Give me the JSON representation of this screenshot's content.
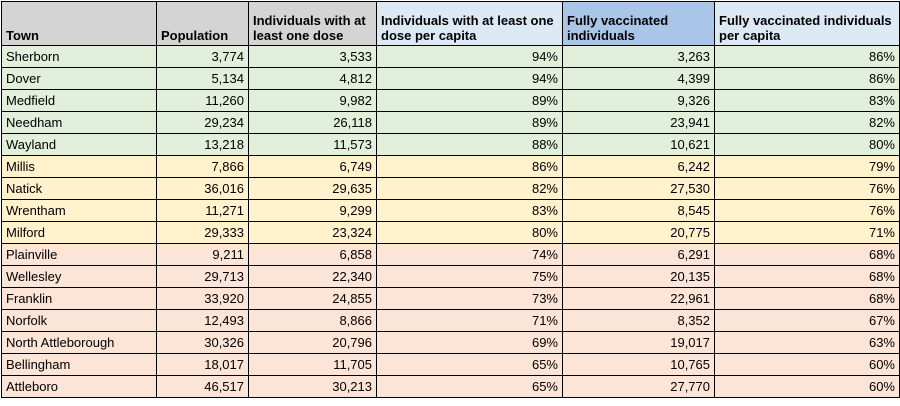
{
  "colors": {
    "header_gray": "#d4d4d4",
    "header_light_blue": "#dde8f5",
    "header_blue": "#a9c6e8",
    "row_green": "#e2efda",
    "row_yellow": "#fff2cc",
    "row_red": "#fce4d6"
  },
  "table": {
    "headers": {
      "town": "Town",
      "population": "Population",
      "one_dose": "Individuals with at least one dose",
      "one_dose_per_capita": "Individuals with at least one dose per capita",
      "fully_vaccinated": "Fully vaccinated individuals",
      "fully_vaccinated_per_capita": "Fully vaccinated individuals per capita"
    },
    "rows": [
      {
        "town": "Sherborn",
        "population": "3,774",
        "one_dose": "3,533",
        "one_dose_pc": "94%",
        "full": "3,263",
        "full_pc": "86%",
        "band": "green"
      },
      {
        "town": "Dover",
        "population": "5,134",
        "one_dose": "4,812",
        "one_dose_pc": "94%",
        "full": "4,399",
        "full_pc": "86%",
        "band": "green"
      },
      {
        "town": "Medfield",
        "population": "11,260",
        "one_dose": "9,982",
        "one_dose_pc": "89%",
        "full": "9,326",
        "full_pc": "83%",
        "band": "green"
      },
      {
        "town": "Needham",
        "population": "29,234",
        "one_dose": "26,118",
        "one_dose_pc": "89%",
        "full": "23,941",
        "full_pc": "82%",
        "band": "green"
      },
      {
        "town": "Wayland",
        "population": "13,218",
        "one_dose": "11,573",
        "one_dose_pc": "88%",
        "full": "10,621",
        "full_pc": "80%",
        "band": "green"
      },
      {
        "town": "Millis",
        "population": "7,866",
        "one_dose": "6,749",
        "one_dose_pc": "86%",
        "full": "6,242",
        "full_pc": "79%",
        "band": "yellow"
      },
      {
        "town": "Natick",
        "population": "36,016",
        "one_dose": "29,635",
        "one_dose_pc": "82%",
        "full": "27,530",
        "full_pc": "76%",
        "band": "yellow"
      },
      {
        "town": "Wrentham",
        "population": "11,271",
        "one_dose": "9,299",
        "one_dose_pc": "83%",
        "full": "8,545",
        "full_pc": "76%",
        "band": "yellow"
      },
      {
        "town": "Milford",
        "population": "29,333",
        "one_dose": "23,324",
        "one_dose_pc": "80%",
        "full": "20,775",
        "full_pc": "71%",
        "band": "yellow"
      },
      {
        "town": "Plainville",
        "population": "9,211",
        "one_dose": "6,858",
        "one_dose_pc": "74%",
        "full": "6,291",
        "full_pc": "68%",
        "band": "red"
      },
      {
        "town": "Wellesley",
        "population": "29,713",
        "one_dose": "22,340",
        "one_dose_pc": "75%",
        "full": "20,135",
        "full_pc": "68%",
        "band": "red"
      },
      {
        "town": "Franklin",
        "population": "33,920",
        "one_dose": "24,855",
        "one_dose_pc": "73%",
        "full": "22,961",
        "full_pc": "68%",
        "band": "red"
      },
      {
        "town": "Norfolk",
        "population": "12,493",
        "one_dose": "8,866",
        "one_dose_pc": "71%",
        "full": "8,352",
        "full_pc": "67%",
        "band": "red"
      },
      {
        "town": "North Attleborough",
        "population": "30,326",
        "one_dose": "20,796",
        "one_dose_pc": "69%",
        "full": "19,017",
        "full_pc": "63%",
        "band": "red"
      },
      {
        "town": "Bellingham",
        "population": "18,017",
        "one_dose": "11,705",
        "one_dose_pc": "65%",
        "full": "10,765",
        "full_pc": "60%",
        "band": "red"
      },
      {
        "town": "Attleboro",
        "population": "46,517",
        "one_dose": "30,213",
        "one_dose_pc": "65%",
        "full": "27,770",
        "full_pc": "60%",
        "band": "red"
      }
    ]
  }
}
